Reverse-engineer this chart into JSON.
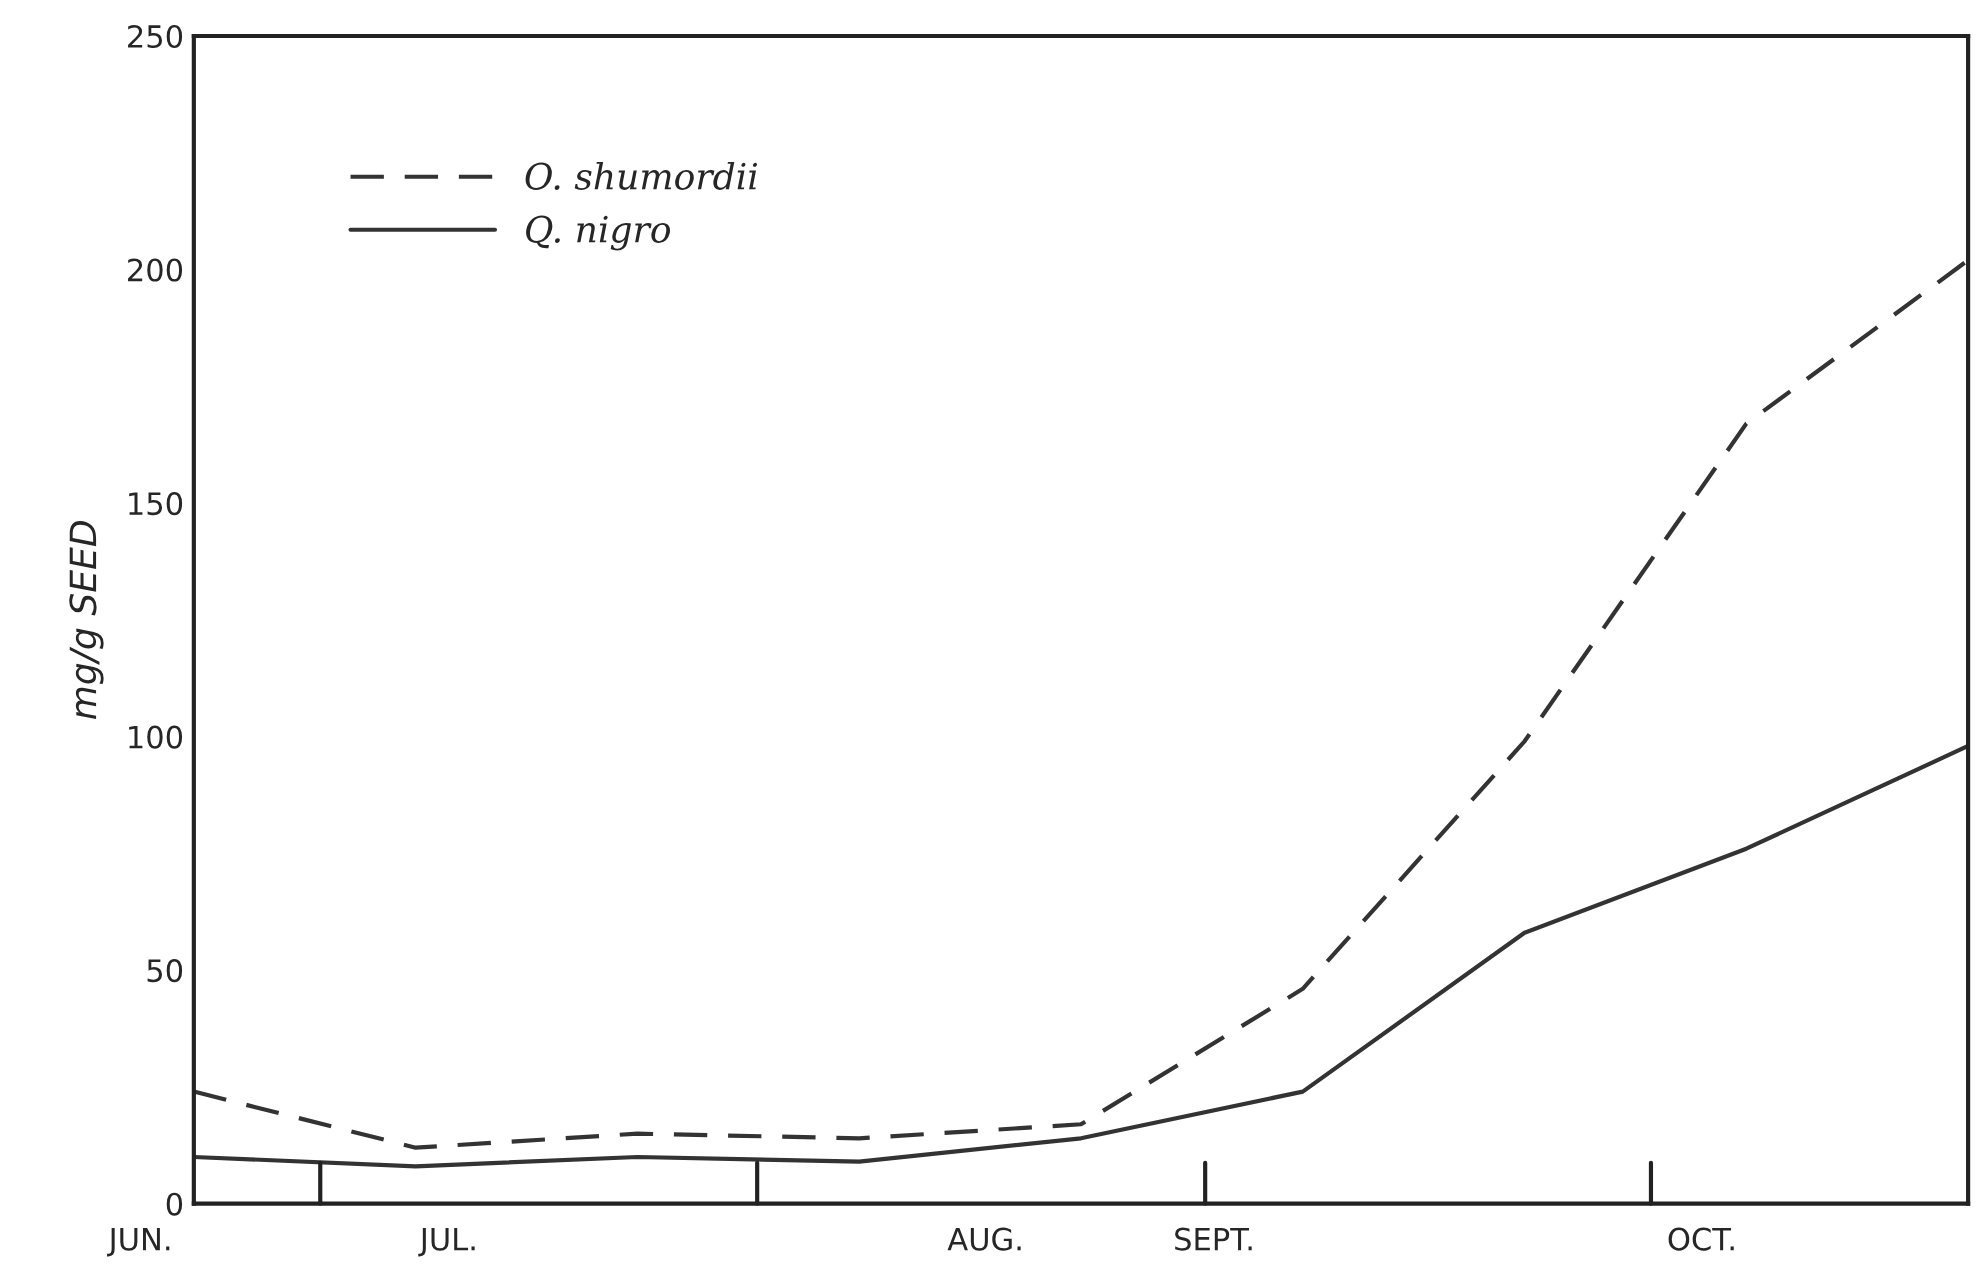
{
  "chart_data": {
    "type": "line",
    "ylabel": "mg/g SEED",
    "categories": [
      null,
      null,
      null,
      null,
      null,
      null,
      null,
      null,
      null
    ],
    "series": [
      {
        "name": "O. shumordii",
        "color": "#333333",
        "line_style": "dashed",
        "values": [
          24,
          12,
          15,
          14,
          17,
          46,
          99,
          167,
          202
        ]
      },
      {
        "name": "Q. nigro",
        "color": "#333333",
        "line_style": "solid",
        "values": [
          10,
          8,
          10,
          9,
          14,
          24,
          58,
          76,
          98
        ]
      }
    ],
    "annotations": [
      "JUN.",
      "JUL.",
      "AUG.",
      "SEPT.",
      "OCT."
    ],
    "ylim": [
      0,
      250
    ],
    "yticks": [
      0,
      50,
      100,
      150,
      200,
      250
    ],
    "grid": false,
    "legend": "top left",
    "marker": "none"
  }
}
